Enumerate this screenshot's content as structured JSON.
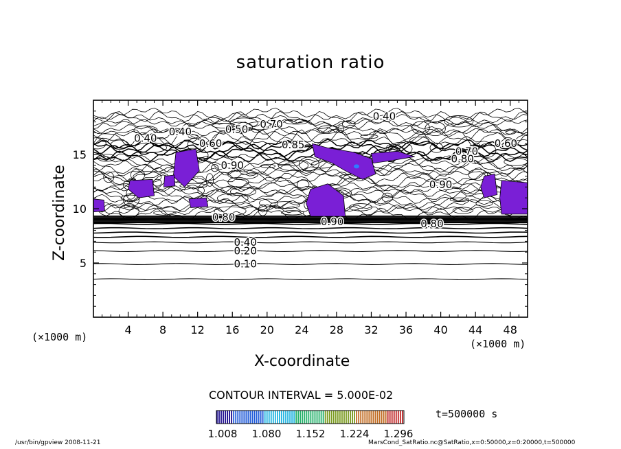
{
  "chart_data": {
    "type": "contour",
    "title": "saturation ratio",
    "xlabel": "X-coordinate",
    "ylabel": "Z-coordinate",
    "x_unit": "(×1000 m)",
    "xlim": [
      0,
      50
    ],
    "ylim": [
      0,
      20
    ],
    "x_ticks": [
      4,
      8,
      12,
      16,
      20,
      24,
      28,
      32,
      36,
      40,
      44,
      48
    ],
    "y_ticks": [
      5,
      10,
      15
    ],
    "horizontal_contours": [
      {
        "z": 3.5,
        "label": ""
      },
      {
        "z": 4.9,
        "label": "0.10"
      },
      {
        "z": 6.1,
        "label": "0.20"
      },
      {
        "z": 6.9,
        "label": "0.40"
      },
      {
        "z": 7.4,
        "label": ""
      },
      {
        "z": 7.8,
        "label": ""
      },
      {
        "z": 8.2,
        "label": ""
      },
      {
        "z": 8.6,
        "label": ""
      },
      {
        "z": 9.0,
        "label": ""
      }
    ],
    "contour_labels": [
      {
        "text": "0.40",
        "x": 33.5,
        "z": 18.5
      },
      {
        "text": "0.40",
        "x": 10.0,
        "z": 17.1
      },
      {
        "text": "0.40",
        "x": 6.0,
        "z": 16.5
      },
      {
        "text": "0.50",
        "x": 16.5,
        "z": 17.3
      },
      {
        "text": "0.70",
        "x": 20.5,
        "z": 17.8
      },
      {
        "text": "0.60",
        "x": 13.5,
        "z": 16.0
      },
      {
        "text": "0.85",
        "x": 23.0,
        "z": 15.9
      },
      {
        "text": "0.70",
        "x": 43.0,
        "z": 15.3
      },
      {
        "text": "0.80",
        "x": 42.5,
        "z": 14.6
      },
      {
        "text": "0.60",
        "x": 47.5,
        "z": 16.0
      },
      {
        "text": "0.90",
        "x": 40.0,
        "z": 12.2
      },
      {
        "text": "0.90",
        "x": 16.0,
        "z": 14.0
      },
      {
        "text": "0.80",
        "x": 15.0,
        "z": 9.2
      },
      {
        "text": "0.90",
        "x": 27.5,
        "z": 8.8
      },
      {
        "text": "0.80",
        "x": 39.0,
        "z": 8.6
      }
    ],
    "filled_regions_value_min": 1.008,
    "contour_interval": "CONTOUR INTERVAL = 5.000E-02",
    "colorbar": {
      "labels": [
        "1.008",
        "1.080",
        "1.152",
        "1.224",
        "1.296"
      ],
      "colors": [
        "#1a0a8c",
        "#1f5ad8",
        "#22b4e0",
        "#24b06a",
        "#7a9a20",
        "#c06a20",
        "#c02828"
      ]
    },
    "fill_color": "#7a1fd6",
    "time": "t=500000 s"
  },
  "footer": {
    "left": "/usr/bin/gpview  2008-11-21",
    "right": "MarsCond_SatRatio.nc@SatRatio,x=0:50000,z=0:20000,t=500000"
  }
}
